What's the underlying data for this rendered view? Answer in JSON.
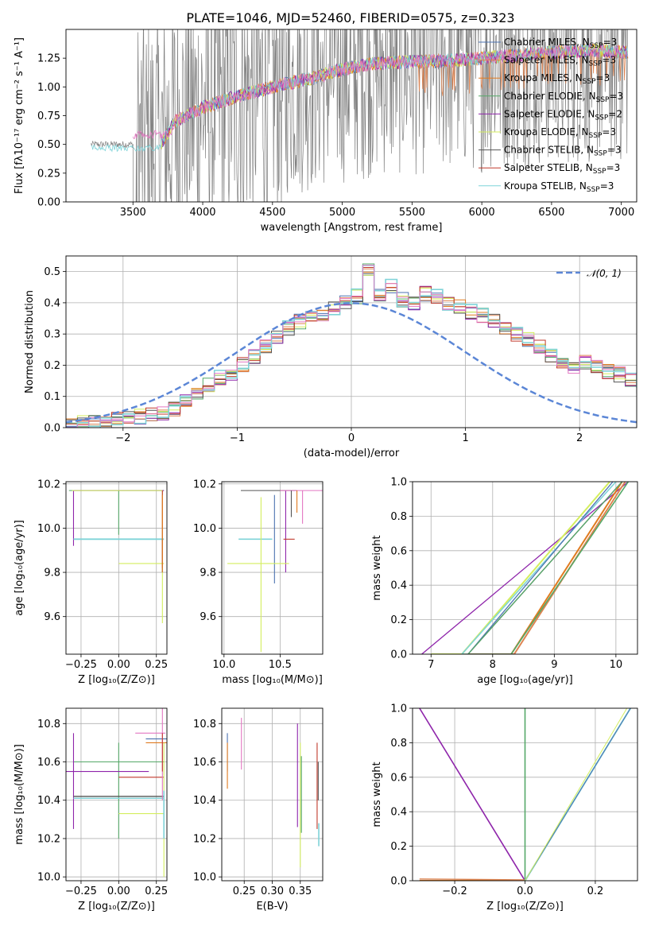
{
  "title": "PLATE=1046, MJD=52460, FIBERID=0575, z=0.323",
  "colors": {
    "Chabrier MILES": "#4c72b0",
    "Salpeter MILES": "#dd8452",
    "Kroupa MILES": "#e07b20",
    "Chabrier ELODIE": "#55a868",
    "Salpeter ELODIE": "#8e24aa",
    "Kroupa ELODIE": "#d4ee5e",
    "Chabrier STELIB": "#555555",
    "Salpeter STELIB": "#c0392b",
    "Kroupa STELIB": "#7fd3d8",
    "data": "#808080",
    "gauss": "#5b86d6",
    "pink": "#e377c2"
  },
  "chart_data": [
    {
      "type": "line",
      "panel": "spectrum",
      "xlabel": "wavelength [Angstrom, rest frame]",
      "ylabel": "Flux [fλ10⁻¹⁷ erg cm⁻² s⁻¹ A⁻¹]",
      "xlim": [
        3020,
        7110
      ],
      "ylim": [
        0,
        1.5
      ],
      "xticks": [
        3500,
        4000,
        4500,
        5000,
        5500,
        6000,
        6500,
        7000
      ],
      "yticks": [
        0.0,
        0.25,
        0.5,
        0.75,
        1.0,
        1.25
      ],
      "legend_position": "right",
      "legend": [
        "Chabrier MILES, N_SSP=3",
        "Salpeter MILES, N_SSP=3",
        "Kroupa MILES, N_SSP=3",
        "Chabrier ELODIE, N_SSP=3",
        "Salpeter ELODIE, N_SSP=2",
        "Kroupa ELODIE, N_SSP=3",
        "Chabrier STELIB, N_SSP=3",
        "Salpeter STELIB, N_SSP=3",
        "Kroupa STELIB, N_SSP=3"
      ],
      "model_continuum": {
        "x": [
          3200,
          3500,
          3700,
          3800,
          4000,
          4200,
          4500,
          4800,
          5000,
          5200,
          5500,
          5800,
          6000,
          6300,
          6500,
          6800,
          7000
        ],
        "y": [
          0.5,
          0.5,
          0.5,
          0.7,
          0.82,
          0.9,
          1.0,
          1.08,
          1.15,
          1.2,
          1.22,
          1.23,
          1.25,
          1.28,
          1.3,
          1.32,
          1.3
        ]
      }
    },
    {
      "type": "bar",
      "panel": "residuals",
      "xlabel": "(data-model)/error",
      "ylabel": "Normed distribution",
      "xlim": [
        -2.5,
        2.5
      ],
      "ylim": [
        0,
        0.55
      ],
      "xticks": [
        -2,
        -1,
        0,
        1,
        2
      ],
      "yticks": [
        0.0,
        0.1,
        0.2,
        0.3,
        0.4,
        0.5
      ],
      "legend_position": "top-right",
      "legend": [
        "𝒩(0, 1)"
      ],
      "bin_width": 0.1,
      "hist_values": [
        0.01,
        0.015,
        0.02,
        0.02,
        0.025,
        0.03,
        0.035,
        0.04,
        0.045,
        0.06,
        0.08,
        0.11,
        0.14,
        0.16,
        0.17,
        0.2,
        0.23,
        0.26,
        0.29,
        0.32,
        0.34,
        0.36,
        0.36,
        0.38,
        0.4,
        0.42,
        0.5,
        0.42,
        0.45,
        0.41,
        0.4,
        0.43,
        0.42,
        0.4,
        0.39,
        0.37,
        0.36,
        0.34,
        0.32,
        0.3,
        0.28,
        0.26,
        0.23,
        0.2,
        0.19,
        0.21,
        0.2,
        0.18,
        0.17,
        0.15,
        0.13,
        0.12,
        0.1,
        0.09,
        0.08,
        0.06,
        0.05,
        0.04,
        0.035,
        0.03
      ]
    },
    {
      "type": "scatter",
      "panel": "age_vs_Z",
      "xlabel": "Z [log₁₀(Z/Z⊙)]",
      "ylabel": "age  [log₁₀(age/yr)]",
      "xlim": [
        -0.35,
        0.32
      ],
      "ylim": [
        9.43,
        10.21
      ],
      "xticks": [
        -0.25,
        0.0,
        0.25
      ],
      "yticks": [
        9.6,
        9.8,
        10.0,
        10.2
      ]
    },
    {
      "type": "scatter",
      "panel": "age_vs_mass",
      "xlabel": "mass [log₁₀(M/M⊙)]",
      "ylabel": "",
      "xlim": [
        9.98,
        10.88
      ],
      "ylim": [
        9.43,
        10.21
      ],
      "xticks": [
        10.0,
        10.5
      ],
      "yticks": [
        9.6,
        9.8,
        10.0,
        10.2
      ]
    },
    {
      "type": "line",
      "panel": "massweight_vs_age",
      "xlabel": "age  [log₁₀(age/yr)]",
      "ylabel": "mass weight",
      "xlim": [
        6.7,
        10.35
      ],
      "ylim": [
        0,
        1
      ],
      "xticks": [
        7,
        8,
        9,
        10
      ],
      "yticks": [
        0.0,
        0.2,
        0.4,
        0.6,
        0.8,
        1.0
      ]
    },
    {
      "type": "scatter",
      "panel": "mass_vs_Z",
      "xlabel": "Z [log₁₀(Z/Z⊙)]",
      "ylabel": "mass [log₁₀(M/M⊙)]",
      "xlim": [
        -0.35,
        0.32
      ],
      "ylim": [
        9.98,
        10.88
      ],
      "xticks": [
        -0.25,
        0.0,
        0.25
      ],
      "yticks": [
        10.0,
        10.2,
        10.4,
        10.6,
        10.8
      ]
    },
    {
      "type": "scatter",
      "panel": "mass_vs_EBV",
      "xlabel": "E(B-V)",
      "ylabel": "",
      "xlim": [
        0.21,
        0.39
      ],
      "ylim": [
        9.98,
        10.88
      ],
      "xticks": [
        0.25,
        0.3,
        0.35
      ],
      "yticks": [
        10.0,
        10.2,
        10.4,
        10.6,
        10.8
      ]
    },
    {
      "type": "line",
      "panel": "massweight_vs_Z",
      "xlabel": "Z [log₁₀(Z/Z⊙)]",
      "ylabel": "mass weight",
      "xlim": [
        -0.32,
        0.32
      ],
      "ylim": [
        0,
        1
      ],
      "xticks": [
        -0.2,
        0.0,
        0.2
      ],
      "yticks": [
        0.0,
        0.2,
        0.4,
        0.6,
        0.8,
        1.0
      ]
    }
  ]
}
